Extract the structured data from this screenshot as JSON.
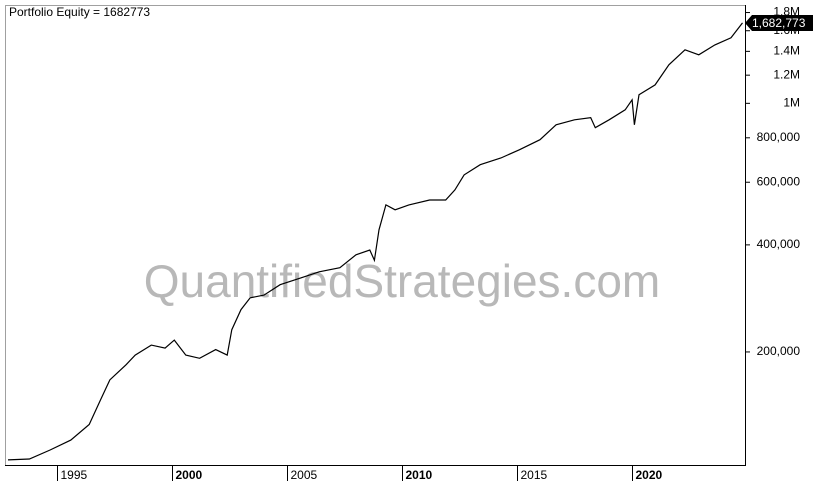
{
  "chart_data": {
    "type": "line",
    "title": "Portfolio Equity = 1682773",
    "watermark": "QuantifiedStrategies.com",
    "log_scale_y": true,
    "grid": false,
    "x": [
      1992.87,
      1993.8,
      1994.7,
      1995.6,
      1996.4,
      1996.9,
      1997.3,
      1998.0,
      1998.4,
      1999.1,
      1999.7,
      2000.1,
      2000.6,
      2001.2,
      2001.9,
      2002.4,
      2002.6,
      2003.0,
      2003.4,
      2004.0,
      2004.7,
      2005.6,
      2006.4,
      2007.3,
      2008.0,
      2008.6,
      2008.8,
      2009.0,
      2009.3,
      2009.7,
      2010.3,
      2011.2,
      2011.9,
      2012.3,
      2012.7,
      2013.4,
      2014.3,
      2015.1,
      2016.0,
      2016.7,
      2017.5,
      2018.2,
      2018.4,
      2019.0,
      2019.7,
      2020.0,
      2020.1,
      2020.3,
      2021.0,
      2021.6,
      2022.3,
      2022.9,
      2023.6,
      2024.3,
      2024.8
    ],
    "series": [
      {
        "name": "Portfolio Equity",
        "color": "#000000",
        "values": [
          99400,
          100000,
          106000,
          113000,
          125000,
          147000,
          167000,
          184000,
          196000,
          209000,
          205000,
          216000,
          196000,
          192000,
          203000,
          196000,
          231000,
          263000,
          284000,
          289000,
          309000,
          323000,
          336000,
          345000,
          375000,
          387000,
          362000,
          441000,
          518000,
          502000,
          518000,
          535000,
          535000,
          571000,
          629000,
          672000,
          702000,
          740000,
          790000,
          870000,
          899000,
          912000,
          854000,
          899000,
          959000,
          1023000,
          870000,
          1057000,
          1127000,
          1283000,
          1414000,
          1369000,
          1460000,
          1528000,
          1682773
        ]
      }
    ],
    "last_label": {
      "value": 1682773,
      "label": "1,682,773"
    },
    "xlim": [
      1992.74,
      2024.91
    ],
    "xticks": [
      1995,
      2000,
      2005,
      2010,
      2015,
      2020
    ],
    "ylim": [
      96200,
      1890000
    ],
    "yticks": [
      {
        "value": 200000,
        "label": "200,000"
      },
      {
        "value": 400000,
        "label": "400,000"
      },
      {
        "value": 600000,
        "label": "600,000"
      },
      {
        "value": 800000,
        "label": "800,000"
      },
      {
        "value": 1000000,
        "label": "1M"
      },
      {
        "value": 1200000,
        "label": "1.2M"
      },
      {
        "value": 1400000,
        "label": "1.4M"
      },
      {
        "value": 1600000,
        "label": "1.6M"
      },
      {
        "value": 1800000,
        "label": "1.8M"
      }
    ]
  }
}
